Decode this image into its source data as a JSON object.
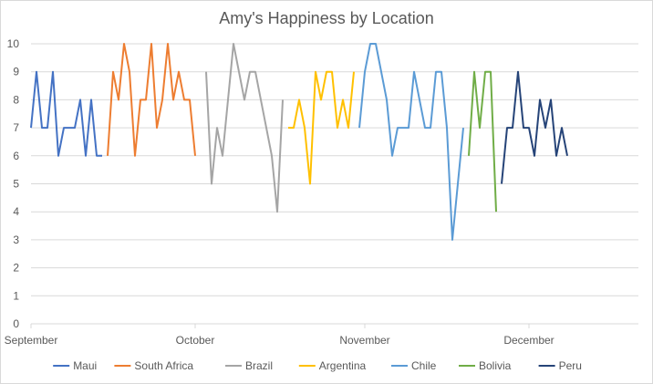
{
  "chart_data": {
    "type": "line",
    "title": "Amy's Happiness by Location",
    "xlabel": "",
    "ylabel": "",
    "ylim": [
      0,
      10
    ],
    "yticks": [
      0,
      1,
      2,
      3,
      4,
      5,
      6,
      7,
      8,
      9,
      10
    ],
    "xlim": [
      "2017-09-01",
      "2017-12-21"
    ],
    "xticks": [
      {
        "date": "2017-09-01",
        "label": "September"
      },
      {
        "date": "2017-10-01",
        "label": "October"
      },
      {
        "date": "2017-11-01",
        "label": "November"
      },
      {
        "date": "2017-12-01",
        "label": "December"
      }
    ],
    "grid": "horizontal",
    "legend": "bottom",
    "series": [
      {
        "name": "Maui",
        "color": "#4472c4",
        "x": [
          "2017-09-01",
          "2017-09-02",
          "2017-09-03",
          "2017-09-04",
          "2017-09-05",
          "2017-09-06",
          "2017-09-07",
          "2017-09-08",
          "2017-09-09",
          "2017-09-10",
          "2017-09-11",
          "2017-09-12",
          "2017-09-13",
          "2017-09-14",
          "2017-09-15"
        ],
        "y": [
          7,
          9,
          7,
          7,
          9,
          6,
          7,
          7,
          7,
          8,
          6,
          8,
          6,
          6,
          null
        ]
      },
      {
        "name": "South Africa",
        "color": "#ed7d31",
        "x": [
          "2017-09-15",
          "2017-09-16",
          "2017-09-17",
          "2017-09-18",
          "2017-09-19",
          "2017-09-20",
          "2017-09-21",
          "2017-09-22",
          "2017-09-23",
          "2017-09-24",
          "2017-09-25",
          "2017-09-26",
          "2017-09-27",
          "2017-09-28",
          "2017-09-29",
          "2017-09-30",
          "2017-10-01"
        ],
        "y": [
          6,
          9,
          8,
          10,
          9,
          6,
          8,
          8,
          10,
          7,
          8,
          10,
          8,
          9,
          8,
          8,
          6
        ]
      },
      {
        "name": "Brazil",
        "color": "#a5a5a5",
        "x": [
          "2017-10-03",
          "2017-10-04",
          "2017-10-05",
          "2017-10-06",
          "2017-10-07",
          "2017-10-08",
          "2017-10-09",
          "2017-10-10",
          "2017-10-11",
          "2017-10-12",
          "2017-10-13",
          "2017-10-14",
          "2017-10-15",
          "2017-10-16",
          "2017-10-17"
        ],
        "y": [
          9,
          5,
          7,
          6,
          8,
          10,
          9,
          8,
          9,
          9,
          8,
          7,
          6,
          4,
          8
        ]
      },
      {
        "name": "Argentina",
        "color": "#ffc000",
        "x": [
          "2017-10-18",
          "2017-10-19",
          "2017-10-20",
          "2017-10-21",
          "2017-10-22",
          "2017-10-23",
          "2017-10-24",
          "2017-10-25",
          "2017-10-26",
          "2017-10-27",
          "2017-10-28",
          "2017-10-29",
          "2017-10-30"
        ],
        "y": [
          7,
          7,
          8,
          7,
          5,
          9,
          8,
          9,
          9,
          7,
          8,
          7,
          9
        ]
      },
      {
        "name": "Chile",
        "color": "#5b9bd5",
        "x": [
          "2017-10-31",
          "2017-11-01",
          "2017-11-02",
          "2017-11-03",
          "2017-11-04",
          "2017-11-05",
          "2017-11-06",
          "2017-11-07",
          "2017-11-08",
          "2017-11-09",
          "2017-11-10",
          "2017-11-11",
          "2017-11-12",
          "2017-11-13",
          "2017-11-14",
          "2017-11-15",
          "2017-11-16",
          "2017-11-17",
          "2017-11-18",
          "2017-11-19"
        ],
        "y": [
          7,
          9,
          10,
          10,
          9,
          8,
          6,
          7,
          7,
          7,
          9,
          8,
          7,
          7,
          9,
          9,
          7,
          3,
          5,
          7
        ]
      },
      {
        "name": "Bolivia",
        "color": "#70ad47",
        "x": [
          "2017-11-20",
          "2017-11-21",
          "2017-11-22",
          "2017-11-23",
          "2017-11-24",
          "2017-11-25"
        ],
        "y": [
          6,
          9,
          7,
          9,
          9,
          4
        ]
      },
      {
        "name": "Peru",
        "color": "#264478",
        "x": [
          "2017-11-26",
          "2017-11-27",
          "2017-11-28",
          "2017-11-29",
          "2017-11-30",
          "2017-12-01",
          "2017-12-02",
          "2017-12-03",
          "2017-12-04",
          "2017-12-05",
          "2017-12-06",
          "2017-12-07",
          "2017-12-08",
          "2017-12-09"
        ],
        "y": [
          5,
          7,
          7,
          9,
          7,
          7,
          6,
          8,
          7,
          8,
          6,
          7,
          6,
          null
        ]
      }
    ]
  }
}
